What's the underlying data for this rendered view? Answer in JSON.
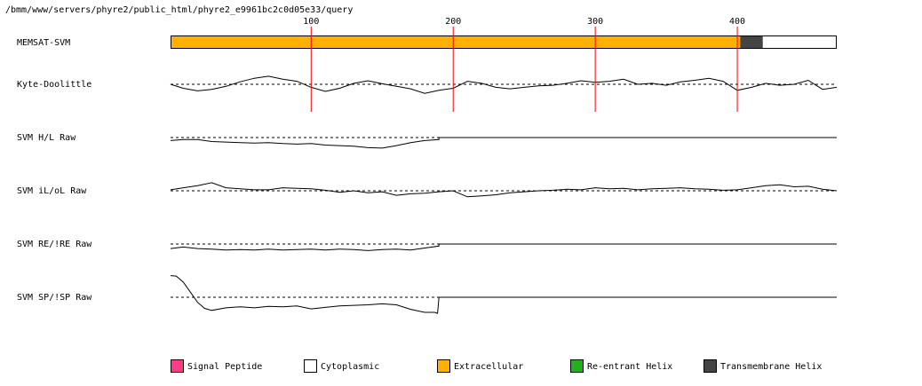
{
  "header_path": "/bmm/www/servers/phyre2/public_html/phyre2_e9961bc2c0d05e33/query",
  "chart_data": {
    "type": "line",
    "x_axis": {
      "min": 1,
      "max": 470,
      "ticks": [
        100,
        200,
        300,
        400
      ],
      "tick_labels": [
        "100",
        "200",
        "300",
        "400"
      ],
      "marker_color": "#ff0000"
    },
    "topology_track": {
      "label": "MEMSAT-SVM",
      "segments": [
        {
          "start": 1,
          "end": 402,
          "type": "Extracellular"
        },
        {
          "start": 402,
          "end": 418,
          "type": "Transmembrane Helix"
        },
        {
          "start": 418,
          "end": 470,
          "type": "Cytoplasmic"
        }
      ]
    },
    "tracks": [
      {
        "label": "Kyte-Doolittle",
        "baseline": 0,
        "y_range": [
          -4,
          4
        ],
        "x": [
          1,
          10,
          20,
          30,
          40,
          50,
          60,
          70,
          80,
          90,
          100,
          110,
          120,
          130,
          140,
          150,
          160,
          170,
          180,
          190,
          200,
          210,
          220,
          230,
          240,
          250,
          260,
          270,
          280,
          290,
          300,
          310,
          320,
          330,
          340,
          350,
          360,
          370,
          380,
          390,
          400,
          410,
          420,
          430,
          440,
          450,
          460,
          470
        ],
        "values": [
          0.0,
          -0.8,
          -1.3,
          -1.0,
          -0.4,
          0.5,
          1.2,
          1.6,
          1.0,
          0.6,
          -0.6,
          -1.4,
          -0.8,
          0.2,
          0.7,
          0.1,
          -0.4,
          -0.9,
          -1.8,
          -1.2,
          -0.8,
          0.6,
          0.2,
          -0.6,
          -0.9,
          -0.6,
          -0.3,
          -0.2,
          0.2,
          0.7,
          0.4,
          0.6,
          1.0,
          0.0,
          0.2,
          -0.2,
          0.5,
          0.8,
          1.2,
          0.6,
          -1.2,
          -0.6,
          0.2,
          -0.2,
          0.0,
          0.8,
          -1.0,
          -0.6
        ]
      },
      {
        "label": "SVM H/L Raw",
        "baseline": 0,
        "y_range": [
          -4,
          4
        ],
        "data_end": 190,
        "x": [
          1,
          10,
          20,
          30,
          40,
          50,
          60,
          70,
          80,
          90,
          100,
          110,
          120,
          130,
          140,
          150,
          160,
          170,
          180,
          190
        ],
        "values": [
          -0.6,
          -0.4,
          -0.4,
          -0.8,
          -0.9,
          -1.0,
          -1.1,
          -1.0,
          -1.2,
          -1.3,
          -1.2,
          -1.5,
          -1.6,
          -1.7,
          -2.0,
          -2.1,
          -1.6,
          -1.0,
          -0.6,
          -0.4
        ]
      },
      {
        "label": "SVM iL/oL Raw",
        "baseline": 0,
        "y_range": [
          -4,
          4
        ],
        "x": [
          1,
          10,
          20,
          30,
          40,
          50,
          60,
          70,
          80,
          90,
          100,
          110,
          120,
          130,
          140,
          150,
          160,
          170,
          180,
          190,
          200,
          210,
          220,
          230,
          240,
          250,
          260,
          270,
          280,
          290,
          300,
          310,
          320,
          330,
          340,
          350,
          360,
          370,
          380,
          390,
          400,
          410,
          420,
          430,
          440,
          450,
          460,
          470
        ],
        "values": [
          0.2,
          0.6,
          1.0,
          1.6,
          0.6,
          0.4,
          0.2,
          0.2,
          0.6,
          0.5,
          0.4,
          0.1,
          -0.3,
          0.0,
          -0.4,
          -0.2,
          -0.9,
          -0.6,
          -0.5,
          -0.2,
          0.0,
          -1.2,
          -1.0,
          -0.8,
          -0.4,
          -0.2,
          0.0,
          0.1,
          0.3,
          0.2,
          0.6,
          0.4,
          0.5,
          0.2,
          0.4,
          0.5,
          0.6,
          0.4,
          0.3,
          0.1,
          0.2,
          0.6,
          1.0,
          1.2,
          0.8,
          0.9,
          0.3,
          0.0
        ]
      },
      {
        "label": "SVM RE/!RE Raw",
        "baseline": 0,
        "y_range": [
          -4,
          4
        ],
        "data_end": 190,
        "x": [
          1,
          10,
          20,
          30,
          40,
          50,
          60,
          70,
          80,
          90,
          100,
          110,
          120,
          130,
          140,
          150,
          160,
          170,
          180,
          190
        ],
        "values": [
          -0.9,
          -0.6,
          -0.9,
          -1.0,
          -1.2,
          -1.1,
          -1.2,
          -1.0,
          -1.2,
          -1.1,
          -1.0,
          -1.2,
          -1.0,
          -1.1,
          -1.3,
          -1.1,
          -1.0,
          -1.2,
          -0.8,
          -0.4
        ]
      },
      {
        "label": "SVM SP/!SP Raw",
        "baseline": 0,
        "y_range": [
          -4,
          4
        ],
        "data_end": 190,
        "x": [
          1,
          5,
          10,
          15,
          20,
          25,
          30,
          40,
          50,
          60,
          70,
          80,
          90,
          100,
          110,
          120,
          130,
          140,
          150,
          160,
          170,
          180,
          187,
          189,
          190
        ],
        "values": [
          4.3,
          4.2,
          3.0,
          1.0,
          -1.0,
          -2.2,
          -2.6,
          -2.1,
          -1.9,
          -2.1,
          -1.8,
          -1.9,
          -1.7,
          -2.3,
          -2.0,
          -1.7,
          -1.6,
          -1.5,
          -1.3,
          -1.5,
          -2.4,
          -3.0,
          -3.0,
          -3.2,
          0.0
        ]
      }
    ]
  },
  "legend": [
    {
      "label": "Signal Peptide",
      "color": "#ff3b85"
    },
    {
      "label": "Cytoplasmic",
      "color": "#ffffff"
    },
    {
      "label": "Extracellular",
      "color": "#ffb000"
    },
    {
      "label": "Re-entrant Helix",
      "color": "#22b022"
    },
    {
      "label": "Transmembrane Helix",
      "color": "#444444"
    }
  ]
}
